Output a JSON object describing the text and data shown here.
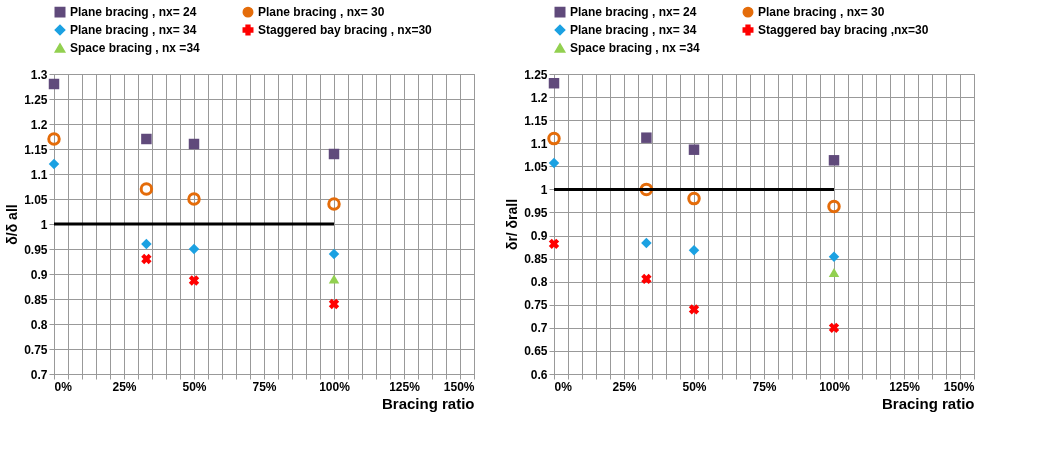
{
  "chart_data": [
    {
      "type": "scatter",
      "xlabel": "Bracing ratio",
      "ylabel": "δ/δ all",
      "xlim": [
        0,
        150
      ],
      "ylim": [
        0.7,
        1.3
      ],
      "xticks": [
        {
          "value": 0,
          "label": "0%"
        },
        {
          "value": 5,
          "label": null
        },
        {
          "value": 10,
          "label": null
        },
        {
          "value": 15,
          "label": null
        },
        {
          "value": 20,
          "label": null
        },
        {
          "value": 25,
          "label": "25%"
        },
        {
          "value": 30,
          "label": null
        },
        {
          "value": 35,
          "label": null
        },
        {
          "value": 40,
          "label": null
        },
        {
          "value": 45,
          "label": null
        },
        {
          "value": 50,
          "label": "50%"
        },
        {
          "value": 55,
          "label": null
        },
        {
          "value": 60,
          "label": null
        },
        {
          "value": 65,
          "label": null
        },
        {
          "value": 70,
          "label": null
        },
        {
          "value": 75,
          "label": "75%"
        },
        {
          "value": 80,
          "label": null
        },
        {
          "value": 85,
          "label": null
        },
        {
          "value": 90,
          "label": null
        },
        {
          "value": 95,
          "label": null
        },
        {
          "value": 100,
          "label": "100%"
        },
        {
          "value": 105,
          "label": null
        },
        {
          "value": 110,
          "label": null
        },
        {
          "value": 115,
          "label": null
        },
        {
          "value": 120,
          "label": null
        },
        {
          "value": 125,
          "label": "125%"
        },
        {
          "value": 130,
          "label": null
        },
        {
          "value": 135,
          "label": null
        },
        {
          "value": 140,
          "label": null
        },
        {
          "value": 145,
          "label": null
        },
        {
          "value": 150,
          "label": "150%"
        }
      ],
      "yticks": [
        0.7,
        0.75,
        0.8,
        0.85,
        0.9,
        0.95,
        1,
        1.05,
        1.1,
        1.15,
        1.2,
        1.25,
        1.3
      ],
      "grid": true,
      "legend": "top",
      "series": [
        {
          "name": "Plane bracing , nx= 24",
          "color": "#604a7b",
          "marker": "square",
          "x": [
            0,
            33,
            50,
            100
          ],
          "values": [
            1.28,
            1.17,
            1.16,
            1.14
          ]
        },
        {
          "name": "Plane bracing , nx= 30",
          "color": "#e46c0a",
          "marker": "circle",
          "x": [
            0,
            33,
            50,
            100
          ],
          "values": [
            1.17,
            1.07,
            1.05,
            1.04
          ]
        },
        {
          "name": "Plane bracing , nx= 34",
          "color": "#1ba1e2",
          "marker": "diamond",
          "x": [
            0,
            33,
            50,
            100
          ],
          "values": [
            1.12,
            0.96,
            0.95,
            0.94
          ]
        },
        {
          "name": "Staggered bay bracing , nx=30",
          "color": "#ff0000",
          "marker": "cross",
          "x": [
            33,
            50,
            100
          ],
          "values": [
            0.93,
            0.887,
            0.84
          ]
        },
        {
          "name": "Space bracing , nx =34",
          "color": "#92d050",
          "marker": "triangle",
          "x": [
            100
          ],
          "values": [
            0.89
          ]
        },
        {
          "type": "line",
          "color": "#000000",
          "line_style": "solid",
          "x": [
            0,
            100
          ],
          "values": [
            1,
            1
          ]
        }
      ]
    },
    {
      "type": "scatter",
      "xlabel": "Bracing ratio",
      "ylabel": "δr/ δrall",
      "xlim": [
        0,
        150
      ],
      "ylim": [
        0.6,
        1.25
      ],
      "xticks": [
        {
          "value": 0,
          "label": "0%"
        },
        {
          "value": 5,
          "label": null
        },
        {
          "value": 10,
          "label": null
        },
        {
          "value": 15,
          "label": null
        },
        {
          "value": 20,
          "label": null
        },
        {
          "value": 25,
          "label": "25%"
        },
        {
          "value": 30,
          "label": null
        },
        {
          "value": 35,
          "label": null
        },
        {
          "value": 40,
          "label": null
        },
        {
          "value": 45,
          "label": null
        },
        {
          "value": 50,
          "label": "50%"
        },
        {
          "value": 55,
          "label": null
        },
        {
          "value": 60,
          "label": null
        },
        {
          "value": 65,
          "label": null
        },
        {
          "value": 70,
          "label": null
        },
        {
          "value": 75,
          "label": "75%"
        },
        {
          "value": 80,
          "label": null
        },
        {
          "value": 85,
          "label": null
        },
        {
          "value": 90,
          "label": null
        },
        {
          "value": 95,
          "label": null
        },
        {
          "value": 100,
          "label": "100%"
        },
        {
          "value": 105,
          "label": null
        },
        {
          "value": 110,
          "label": null
        },
        {
          "value": 115,
          "label": null
        },
        {
          "value": 120,
          "label": null
        },
        {
          "value": 125,
          "label": "125%"
        },
        {
          "value": 130,
          "label": null
        },
        {
          "value": 135,
          "label": null
        },
        {
          "value": 140,
          "label": null
        },
        {
          "value": 145,
          "label": null
        },
        {
          "value": 150,
          "label": "150%"
        }
      ],
      "yticks": [
        0.6,
        0.65,
        0.7,
        0.75,
        0.8,
        0.85,
        0.9,
        0.95,
        1,
        1.05,
        1.1,
        1.15,
        1.2,
        1.25
      ],
      "grid": true,
      "legend": "top",
      "series": [
        {
          "name": "Plane bracing , nx= 24",
          "color": "#604a7b",
          "marker": "square",
          "x": [
            0,
            33,
            50,
            100
          ],
          "values": [
            1.23,
            1.112,
            1.086,
            1.063
          ]
        },
        {
          "name": "Plane bracing , nx= 30",
          "color": "#e46c0a",
          "marker": "circle",
          "x": [
            0,
            33,
            50,
            100
          ],
          "values": [
            1.11,
            1.0,
            0.98,
            0.963
          ]
        },
        {
          "name": "Plane bracing , nx= 34",
          "color": "#1ba1e2",
          "marker": "diamond",
          "x": [
            0,
            33,
            50,
            100
          ],
          "values": [
            1.057,
            0.884,
            0.868,
            0.854
          ]
        },
        {
          "name": "Staggered bay bracing ,nx=30",
          "color": "#ff0000",
          "marker": "cross",
          "x": [
            0,
            33,
            50,
            100
          ],
          "values": [
            0.882,
            0.806,
            0.74,
            0.7
          ]
        },
        {
          "name": "Space bracing , nx =34",
          "color": "#92d050",
          "marker": "triangle",
          "x": [
            100
          ],
          "values": [
            0.82
          ]
        },
        {
          "type": "line",
          "color": "#000000",
          "line_style": "solid",
          "x": [
            0,
            100
          ],
          "values": [
            1,
            1
          ]
        }
      ]
    }
  ]
}
